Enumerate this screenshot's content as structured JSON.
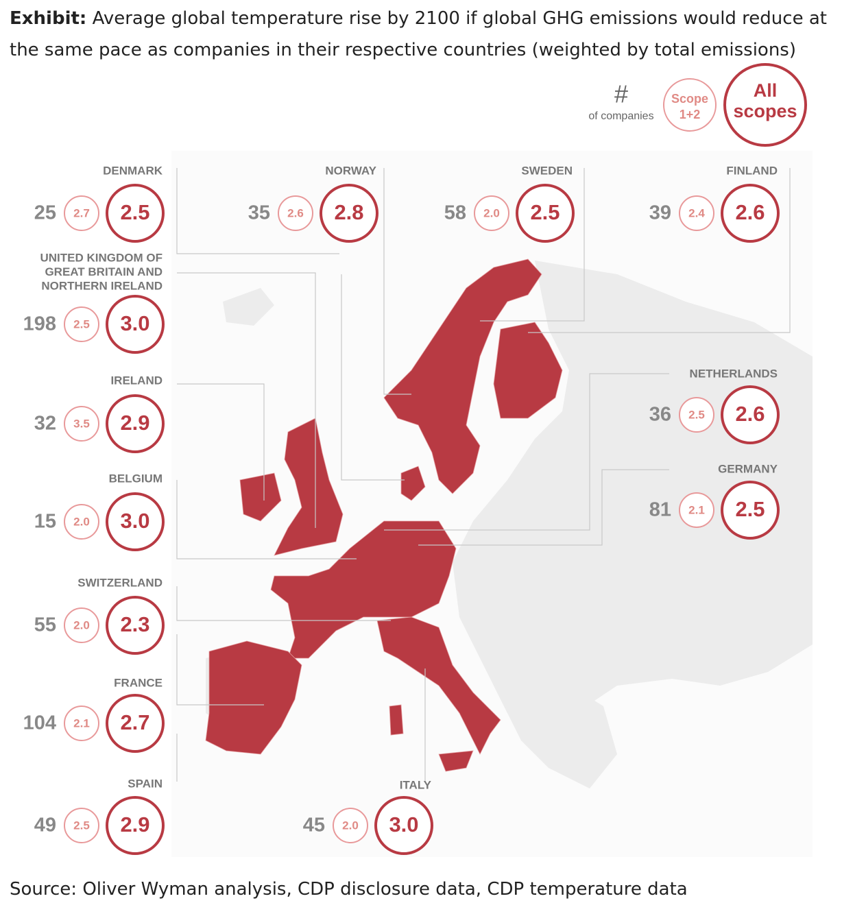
{
  "header": {
    "label": "Exhibit:",
    "title": "Average global temperature rise by 2100 if global GHG emissions would reduce at the same pace as companies in their respective countries (weighted by total emissions)"
  },
  "legend": {
    "companies_symbol": "#",
    "companies_text": "of companies",
    "scope_lines": [
      "Scope",
      "1+2"
    ],
    "all_lines": [
      "All",
      "scopes"
    ]
  },
  "countries": [
    {
      "name_lines": [
        "DENMARK"
      ],
      "companies": "25",
      "scope12": "2.7",
      "all_scopes": "2.5"
    },
    {
      "name_lines": [
        "NORWAY"
      ],
      "companies": "35",
      "scope12": "2.6",
      "all_scopes": "2.8"
    },
    {
      "name_lines": [
        "SWEDEN"
      ],
      "companies": "58",
      "scope12": "2.0",
      "all_scopes": "2.5"
    },
    {
      "name_lines": [
        "FINLAND"
      ],
      "companies": "39",
      "scope12": "2.4",
      "all_scopes": "2.6"
    },
    {
      "name_lines": [
        "UNITED KINGDOM OF",
        "GREAT BRITAIN AND",
        "NORTHERN IRELAND"
      ],
      "companies": "198",
      "scope12": "2.5",
      "all_scopes": "3.0"
    },
    {
      "name_lines": [
        "IRELAND"
      ],
      "companies": "32",
      "scope12": "3.5",
      "all_scopes": "2.9"
    },
    {
      "name_lines": [
        "BELGIUM"
      ],
      "companies": "15",
      "scope12": "2.0",
      "all_scopes": "3.0"
    },
    {
      "name_lines": [
        "SWITZERLAND"
      ],
      "companies": "55",
      "scope12": "2.0",
      "all_scopes": "2.3"
    },
    {
      "name_lines": [
        "FRANCE"
      ],
      "companies": "104",
      "scope12": "2.1",
      "all_scopes": "2.7"
    },
    {
      "name_lines": [
        "SPAIN"
      ],
      "companies": "49",
      "scope12": "2.5",
      "all_scopes": "2.9"
    },
    {
      "name_lines": [
        "ITALY"
      ],
      "companies": "45",
      "scope12": "2.0",
      "all_scopes": "3.0"
    },
    {
      "name_lines": [
        "NETHERLANDS"
      ],
      "companies": "36",
      "scope12": "2.5",
      "all_scopes": "2.6"
    },
    {
      "name_lines": [
        "GERMANY"
      ],
      "companies": "81",
      "scope12": "2.1",
      "all_scopes": "2.5"
    }
  ],
  "footer": {
    "source": "Source: Oliver Wyman analysis, CDP disclosure data, CDP temperature data"
  }
}
